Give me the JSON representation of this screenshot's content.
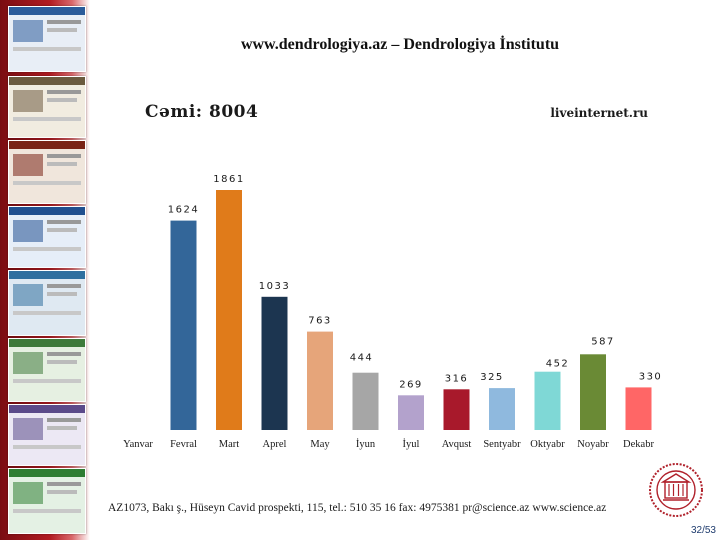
{
  "slide": {
    "title": "www.dendrologiya.az – Dendrologiya İnstitutu",
    "total": "Cəmi: 8004",
    "source": "liveinternet.ru",
    "footer": "AZ1073, Bakı ş., Hüseyn Cavid prospekti, 115, tel.: 510 35 16  fax: 4975381  pr@science.az  www.science.az",
    "page_number": "32/53",
    "emblem_icon": "academy-seal-icon"
  },
  "thumbnails": [
    {
      "name": "website-thumbnail-1",
      "header": "#2a5b9a",
      "body": "#e8eef6"
    },
    {
      "name": "website-thumbnail-2",
      "header": "#6b5a3e",
      "body": "#f1ece0"
    },
    {
      "name": "website-thumbnail-3",
      "header": "#7a2316",
      "body": "#f0e6dc"
    },
    {
      "name": "website-thumbnail-4",
      "header": "#1f4f8f",
      "body": "#e6eef8"
    },
    {
      "name": "website-thumbnail-5",
      "header": "#2f6f9f",
      "body": "#dfe9f2"
    },
    {
      "name": "website-thumbnail-6",
      "header": "#3e7a3a",
      "body": "#e6f0e2"
    },
    {
      "name": "website-thumbnail-7",
      "header": "#5b4a8a",
      "body": "#ece8f4"
    },
    {
      "name": "website-thumbnail-8",
      "header": "#2e7d32",
      "body": "#e4f1e4"
    }
  ],
  "chart_data": {
    "type": "bar",
    "title": "",
    "xlabel": "",
    "ylabel": "",
    "ylim": [
      0,
      1900
    ],
    "grid": false,
    "legend": "none",
    "categories": [
      "Yanvar",
      "Fevral",
      "Mart",
      "Aprel",
      "May",
      "İyun",
      "İyul",
      "Avqust",
      "Sentyabr",
      "Oktyabr",
      "Noyabr",
      "Dekabr"
    ],
    "values": [
      0,
      1624,
      1861,
      1033,
      763,
      444,
      269,
      316,
      325,
      452,
      587,
      330
    ],
    "value_labels": [
      "",
      "1624",
      "1861",
      "1033",
      "763",
      "444",
      "269",
      "316",
      "325",
      "452",
      "587",
      "330"
    ],
    "colors": [
      "#3a6ea5",
      "#336699",
      "#e07b1a",
      "#1c3550",
      "#e6a57a",
      "#a6a6a6",
      "#b3a2cc",
      "#a8192b",
      "#8fb9de",
      "#7fd8d6",
      "#6a8a35",
      "#ff6666"
    ]
  }
}
